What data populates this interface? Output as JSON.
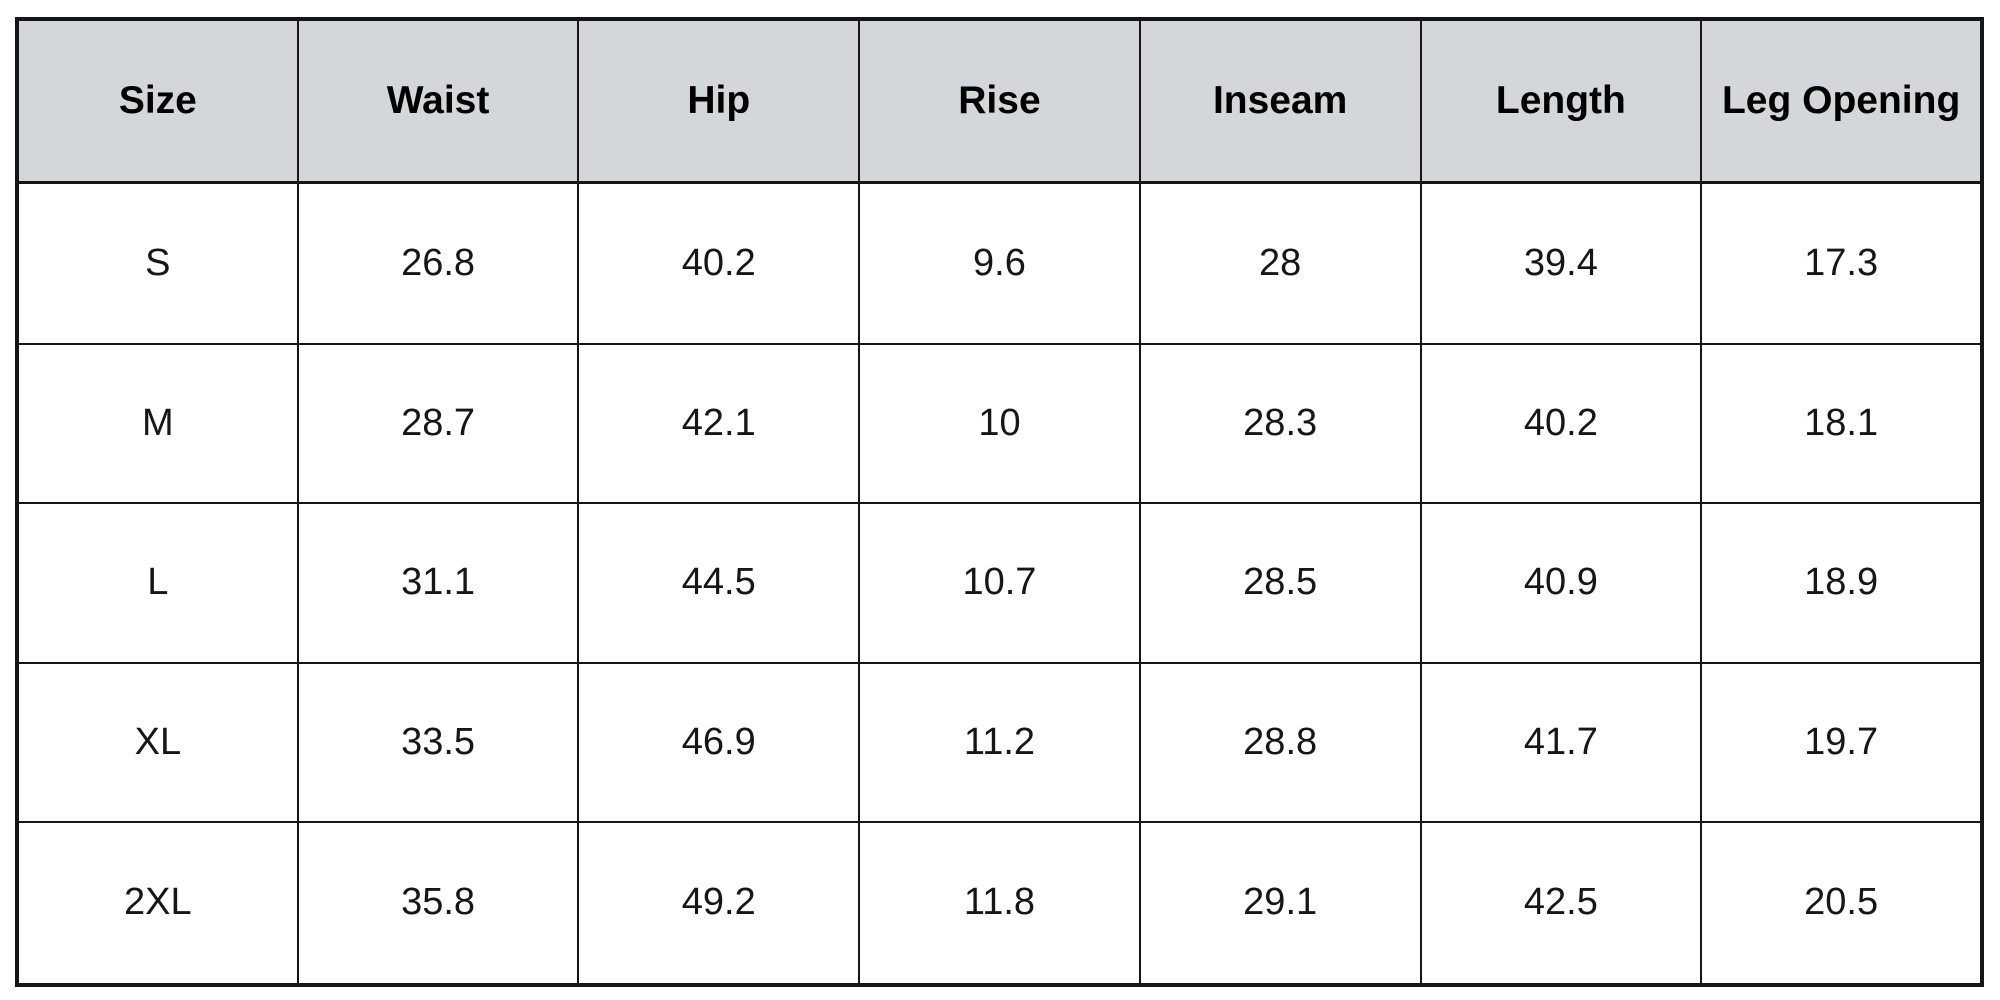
{
  "colors": {
    "header_bg": "#d4d7d9",
    "cell_bg": "#ffffff",
    "border": "#161616",
    "header_text": "#000000",
    "cell_text": "#161616",
    "page_bg": "#ffffff"
  },
  "table": {
    "header": [
      "Size",
      "Waist",
      "Hip",
      "Rise",
      "Inseam",
      "Length",
      "Leg Opening"
    ],
    "rows": [
      [
        "S",
        "26.8",
        "40.2",
        "9.6",
        "28",
        "39.4",
        "17.3"
      ],
      [
        "M",
        "28.7",
        "42.1",
        "10",
        "28.3",
        "40.2",
        "18.1"
      ],
      [
        "L",
        "31.1",
        "44.5",
        "10.7",
        "28.5",
        "40.9",
        "18.9"
      ],
      [
        "XL",
        "33.5",
        "46.9",
        "11.2",
        "28.8",
        "41.7",
        "19.7"
      ],
      [
        "2XL",
        "35.8",
        "49.2",
        "11.8",
        "29.1",
        "42.5",
        "20.5"
      ]
    ]
  },
  "chart_data": {
    "type": "table",
    "title": "",
    "columns": [
      "Size",
      "Waist",
      "Hip",
      "Rise",
      "Inseam",
      "Length",
      "Leg Opening"
    ],
    "rows": [
      {
        "size": "S",
        "waist": 26.8,
        "hip": 40.2,
        "rise": 9.6,
        "inseam": 28,
        "length": 39.4,
        "leg_opening": 17.3
      },
      {
        "size": "M",
        "waist": 28.7,
        "hip": 42.1,
        "rise": 10,
        "inseam": 28.3,
        "length": 40.2,
        "leg_opening": 18.1
      },
      {
        "size": "L",
        "waist": 31.1,
        "hip": 44.5,
        "rise": 10.7,
        "inseam": 28.5,
        "length": 40.9,
        "leg_opening": 18.9
      },
      {
        "size": "XL",
        "waist": 33.5,
        "hip": 46.9,
        "rise": 11.2,
        "inseam": 28.8,
        "length": 41.7,
        "leg_opening": 19.7
      },
      {
        "size": "2XL",
        "waist": 35.8,
        "hip": 49.2,
        "rise": 11.8,
        "inseam": 29.1,
        "length": 42.5,
        "leg_opening": 20.5
      }
    ],
    "layout": {
      "header_background": "#d4d7d9",
      "grid": "all-borders",
      "text_align": "center"
    }
  }
}
